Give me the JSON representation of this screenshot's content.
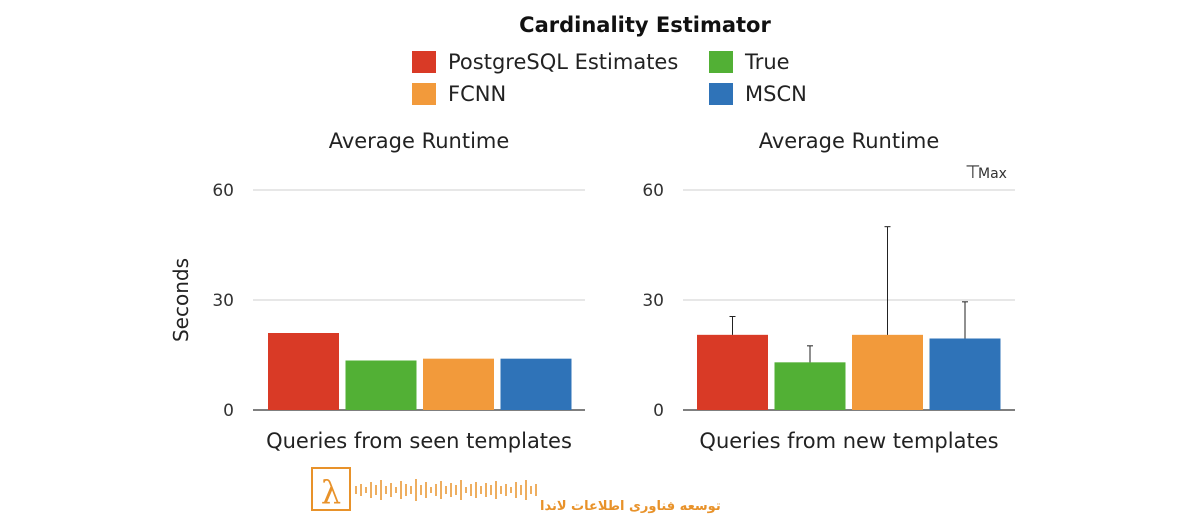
{
  "chart_data": {
    "type": "bar",
    "title": "Cardinality Estimator",
    "ylabel": "Seconds",
    "ylim": [
      0,
      60
    ],
    "yticks": [
      0,
      30,
      60
    ],
    "legend": {
      "placement": "top-center",
      "entries": [
        {
          "name": "PostgreSQL Estimates",
          "color": "#d93a26"
        },
        {
          "name": "True",
          "color": "#52b035"
        },
        {
          "name": "FCNN",
          "color": "#f29a3b"
        },
        {
          "name": "MSCN",
          "color": "#2f73b8"
        }
      ]
    },
    "error_bar_note": {
      "symbol": "⊤",
      "label": "Max"
    },
    "panels": [
      {
        "title": "Average Runtime",
        "xlabel": "Queries from seen templates",
        "series": [
          {
            "name": "PostgreSQL Estimates",
            "value": 21,
            "max": null
          },
          {
            "name": "True",
            "value": 13.5,
            "max": null
          },
          {
            "name": "FCNN",
            "value": 14,
            "max": null
          },
          {
            "name": "MSCN",
            "value": 14,
            "max": null
          }
        ]
      },
      {
        "title": "Average Runtime",
        "xlabel": "Queries from new templates",
        "series": [
          {
            "name": "PostgreSQL Estimates",
            "value": 20.5,
            "max": 25.5
          },
          {
            "name": "True",
            "value": 13,
            "max": 17.5
          },
          {
            "name": "FCNN",
            "value": 20.5,
            "max": 50
          },
          {
            "name": "MSCN",
            "value": 19.5,
            "max": 29.5
          }
        ]
      }
    ]
  },
  "watermark": {
    "symbol": "λ",
    "text": "توسعه فناوری اطلاعات لاندا",
    "color": "#e8922a"
  }
}
